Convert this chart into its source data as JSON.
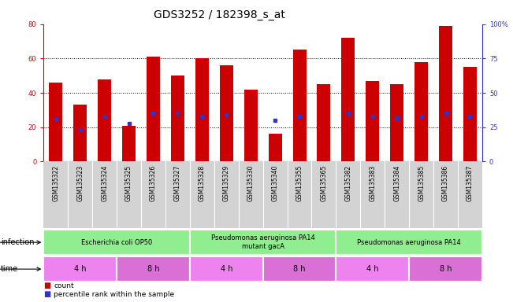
{
  "title": "GDS3252 / 182398_s_at",
  "samples": [
    "GSM135322",
    "GSM135323",
    "GSM135324",
    "GSM135325",
    "GSM135326",
    "GSM135327",
    "GSM135328",
    "GSM135329",
    "GSM135330",
    "GSM135340",
    "GSM135355",
    "GSM135365",
    "GSM135382",
    "GSM135383",
    "GSM135384",
    "GSM135385",
    "GSM135386",
    "GSM135387"
  ],
  "counts": [
    46,
    33,
    48,
    21,
    61,
    50,
    60,
    56,
    42,
    16,
    65,
    45,
    72,
    47,
    45,
    58,
    79,
    55
  ],
  "percentile_ranks": [
    31,
    23,
    33,
    28,
    35,
    35,
    33,
    34,
    0,
    30,
    33,
    0,
    35,
    33,
    32,
    33,
    35,
    33
  ],
  "percentile_shown": [
    true,
    true,
    true,
    true,
    true,
    true,
    true,
    true,
    false,
    true,
    true,
    false,
    true,
    true,
    true,
    true,
    true,
    true
  ],
  "bar_color": "#cc0000",
  "marker_color": "#3333cc",
  "ylim_left": [
    0,
    80
  ],
  "ylim_right": [
    0,
    100
  ],
  "yticks_left": [
    0,
    20,
    40,
    60,
    80
  ],
  "yticks_right": [
    0,
    25,
    50,
    75,
    100
  ],
  "ytick_labels_right": [
    "0",
    "25",
    "50",
    "75",
    "100%"
  ],
  "infection_labels": [
    {
      "label": "Escherichia coli OP50",
      "start": 0,
      "end": 6,
      "color": "#90ee90"
    },
    {
      "label": "Pseudomonas aeruginosa PA14\nmutant gacA",
      "start": 6,
      "end": 12,
      "color": "#90ee90"
    },
    {
      "label": "Pseudomonas aeruginosa PA14",
      "start": 12,
      "end": 18,
      "color": "#90ee90"
    }
  ],
  "time_labels": [
    {
      "label": "4 h",
      "start": 0,
      "end": 3,
      "color": "#ee82ee"
    },
    {
      "label": "8 h",
      "start": 3,
      "end": 6,
      "color": "#da70d6"
    },
    {
      "label": "4 h",
      "start": 6,
      "end": 9,
      "color": "#ee82ee"
    },
    {
      "label": "8 h",
      "start": 9,
      "end": 12,
      "color": "#da70d6"
    },
    {
      "label": "4 h",
      "start": 12,
      "end": 15,
      "color": "#ee82ee"
    },
    {
      "label": "8 h",
      "start": 15,
      "end": 18,
      "color": "#da70d6"
    }
  ],
  "infection_row_label": "infection",
  "time_row_label": "time",
  "legend_count_label": "count",
  "legend_percentile_label": "percentile rank within the sample",
  "bar_width": 0.55,
  "background_color": "#ffffff",
  "plot_bg_color": "#ffffff",
  "title_fontsize": 10,
  "tick_fontsize": 6,
  "label_fontsize": 7,
  "row_label_fontsize": 7
}
